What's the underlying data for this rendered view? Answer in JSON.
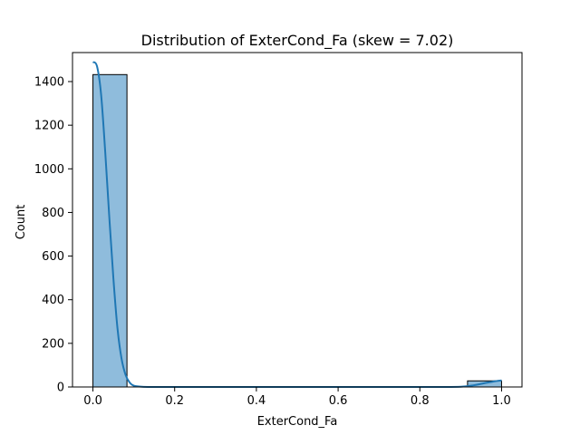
{
  "chart_data": {
    "type": "bar",
    "title": "Distribution of ExterCond_Fa (skew = 7.02)",
    "xlabel": "ExterCond_Fa",
    "ylabel": "Count",
    "xlim": [
      -0.05,
      1.05
    ],
    "ylim": [
      0,
      1533
    ],
    "xticks": [
      0.0,
      0.2,
      0.4,
      0.6,
      0.8,
      1.0
    ],
    "xtick_labels": [
      "0.0",
      "0.2",
      "0.4",
      "0.6",
      "0.8",
      "1.0"
    ],
    "yticks": [
      0,
      200,
      400,
      600,
      800,
      1000,
      1200,
      1400
    ],
    "ytick_labels": [
      "0",
      "200",
      "400",
      "600",
      "800",
      "1000",
      "1200",
      "1400"
    ],
    "bins": [
      {
        "x0": 0.0,
        "x1": 0.0833,
        "count": 1432
      },
      {
        "x0": 0.0833,
        "x1": 0.1667,
        "count": 0
      },
      {
        "x0": 0.1667,
        "x1": 0.25,
        "count": 0
      },
      {
        "x0": 0.25,
        "x1": 0.3333,
        "count": 0
      },
      {
        "x0": 0.3333,
        "x1": 0.4167,
        "count": 0
      },
      {
        "x0": 0.4167,
        "x1": 0.5,
        "count": 0
      },
      {
        "x0": 0.5,
        "x1": 0.5833,
        "count": 0
      },
      {
        "x0": 0.5833,
        "x1": 0.6667,
        "count": 0
      },
      {
        "x0": 0.6667,
        "x1": 0.75,
        "count": 0
      },
      {
        "x0": 0.75,
        "x1": 0.8333,
        "count": 0
      },
      {
        "x0": 0.8333,
        "x1": 0.9167,
        "count": 0
      },
      {
        "x0": 0.9167,
        "x1": 1.0,
        "count": 28
      }
    ],
    "kde": {
      "x": [
        0.0,
        0.01,
        0.02,
        0.03,
        0.04,
        0.05,
        0.06,
        0.07,
        0.08,
        0.09,
        0.1,
        0.12,
        0.15,
        0.2,
        0.3,
        0.5,
        0.7,
        0.85,
        0.9,
        0.93,
        0.96,
        0.98,
        1.0
      ],
      "y": [
        1490,
        1470,
        1340,
        1080,
        780,
        500,
        270,
        130,
        55,
        20,
        6,
        1,
        0,
        0,
        0,
        0,
        0,
        0,
        1,
        7,
        18,
        25,
        30
      ]
    },
    "colors": {
      "bar_fill": "#8fbcdc",
      "bar_edge": "#000000",
      "kde_line": "#1f77b4"
    },
    "grid": false,
    "legend": "none"
  }
}
